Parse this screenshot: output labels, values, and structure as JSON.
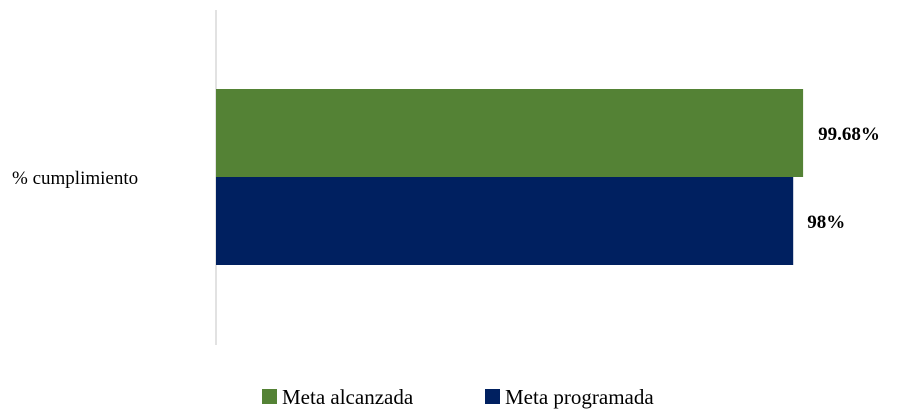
{
  "chart_data": {
    "type": "bar",
    "orientation": "horizontal",
    "categories": [
      "% cumplimiento"
    ],
    "series": [
      {
        "name": "Meta alcanzada",
        "values": [
          99.68
        ],
        "label": "99.68%",
        "color": "#548235"
      },
      {
        "name": "Meta programada",
        "values": [
          98
        ],
        "label": "98%",
        "color": "#002060"
      }
    ],
    "title": "",
    "xlabel": "",
    "ylabel": "",
    "xlim": [
      0,
      100
    ],
    "grid": false,
    "legend_position": "bottom"
  }
}
